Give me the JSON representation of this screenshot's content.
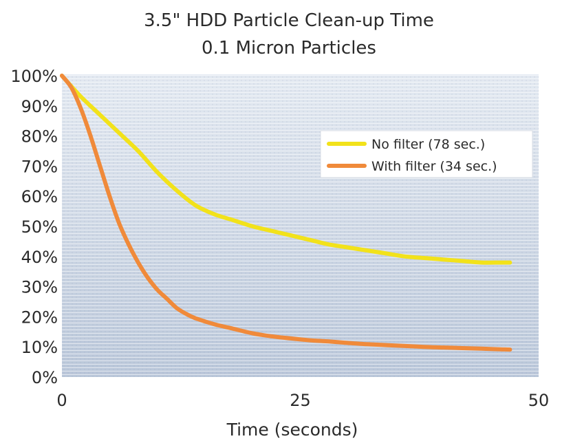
{
  "chart_data": {
    "type": "line",
    "title": "3.5\" HDD Particle Clean-up Time",
    "subtitle": "0.1 Micron Particles",
    "xlabel": "Time (seconds)",
    "ylabel": "",
    "xlim": [
      0,
      50
    ],
    "ylim": [
      0,
      100
    ],
    "x_ticks": [
      "0",
      "25",
      "50"
    ],
    "x_tick_values": [
      0,
      25,
      50
    ],
    "y_ticks": [
      "0%",
      "10%",
      "20%",
      "30%",
      "40%",
      "50%",
      "60%",
      "70%",
      "80%",
      "90%",
      "100%"
    ],
    "y_tick_values": [
      0,
      10,
      20,
      30,
      40,
      50,
      60,
      70,
      80,
      90,
      100
    ],
    "grid": true,
    "legend_position": "top-right",
    "series": [
      {
        "name": "No filter (78 sec.)",
        "color": "#f2e21a",
        "x": [
          0,
          2,
          4,
          6,
          8,
          10,
          12,
          14,
          16,
          18,
          20,
          22,
          24,
          26,
          28,
          30,
          32,
          34,
          36,
          38,
          40,
          42,
          44,
          46,
          47
        ],
        "y": [
          100,
          93,
          87,
          81,
          75,
          68,
          62,
          57,
          54,
          52,
          50,
          48.5,
          47,
          45.5,
          44,
          43,
          42,
          41,
          40,
          39.5,
          39,
          38.5,
          38,
          38,
          38
        ]
      },
      {
        "name": "With filter (34 sec.)",
        "color": "#f08a3a",
        "x": [
          0,
          1,
          2,
          3,
          4,
          5,
          6,
          7,
          8,
          9,
          10,
          11,
          12,
          13,
          14,
          16,
          18,
          20,
          22,
          24,
          26,
          28,
          30,
          32,
          34,
          36,
          38,
          40,
          42,
          44,
          46,
          47
        ],
        "y": [
          100,
          96,
          89,
          80,
          70,
          60,
          51,
          44,
          38,
          33,
          29,
          26,
          23,
          21,
          19.5,
          17.5,
          16,
          14.5,
          13.5,
          12.8,
          12.2,
          11.8,
          11.3,
          10.9,
          10.6,
          10.3,
          10,
          9.8,
          9.6,
          9.4,
          9.2,
          9.1
        ]
      }
    ]
  }
}
